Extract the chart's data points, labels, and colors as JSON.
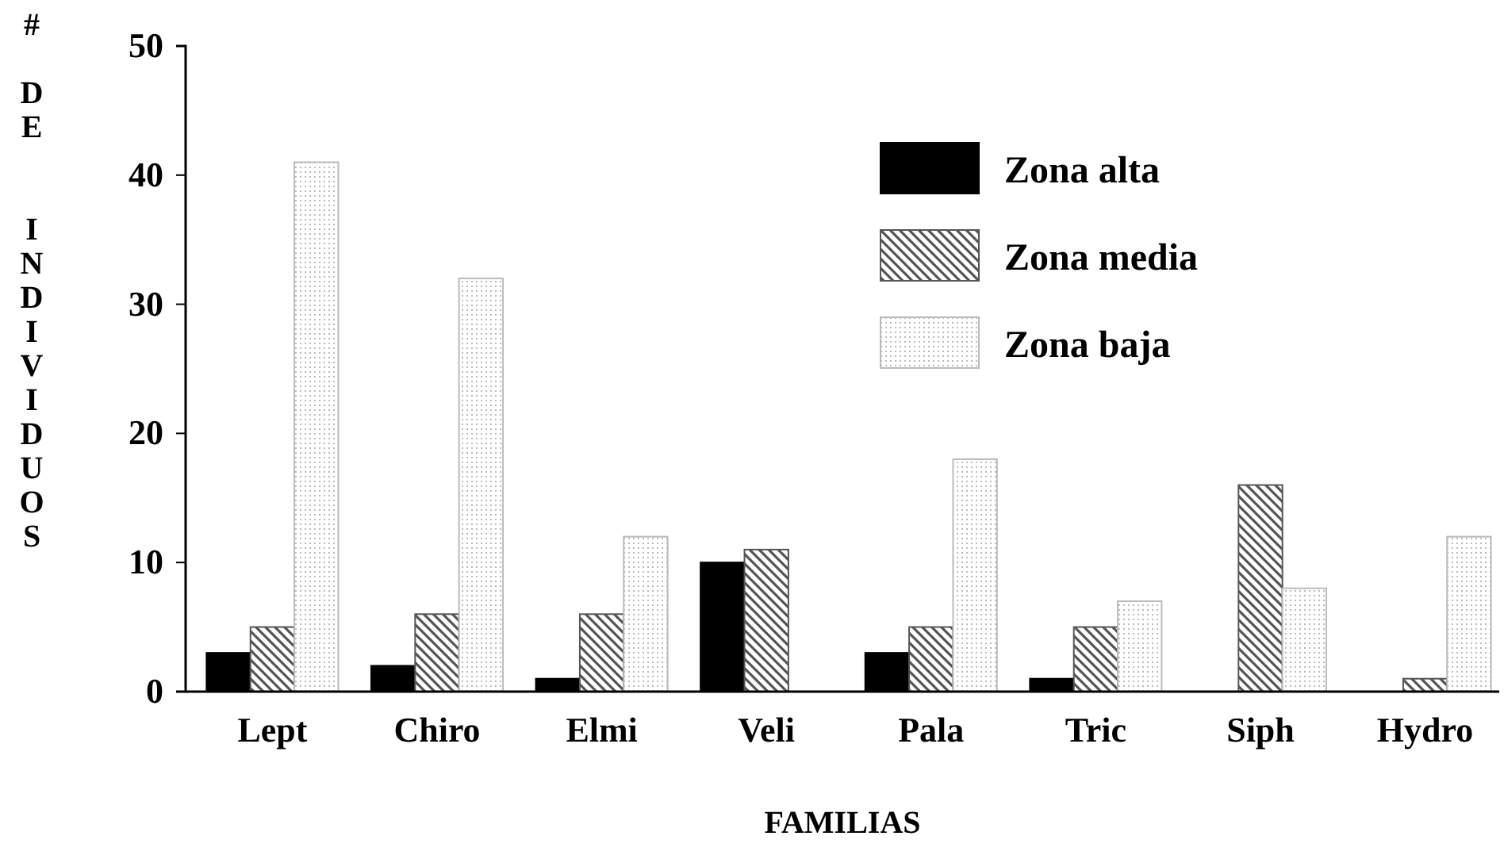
{
  "chart_data": {
    "type": "bar",
    "xlabel": "FAMILIAS",
    "ylabel": "# DE  INDIVIDUOS",
    "categories": [
      "Lept",
      "Chiro",
      "Elmi",
      "Veli",
      "Pala",
      "Tric",
      "Siph",
      "Hydro"
    ],
    "series": [
      {
        "name": "Zona alta",
        "color": "#000000",
        "values": [
          3,
          2,
          1,
          10,
          3,
          1,
          0,
          0
        ]
      },
      {
        "name": "Zona media",
        "color": "#555555",
        "values": [
          5,
          6,
          6,
          11,
          5,
          5,
          16,
          1
        ]
      },
      {
        "name": "Zona baja",
        "color": "#bbbbbb",
        "values": [
          41,
          32,
          12,
          0,
          18,
          7,
          8,
          12
        ]
      }
    ],
    "ylim": [
      0,
      50
    ],
    "yticks": [
      0,
      10,
      20,
      30,
      40,
      50
    ],
    "grid": false,
    "legend": "top right"
  }
}
